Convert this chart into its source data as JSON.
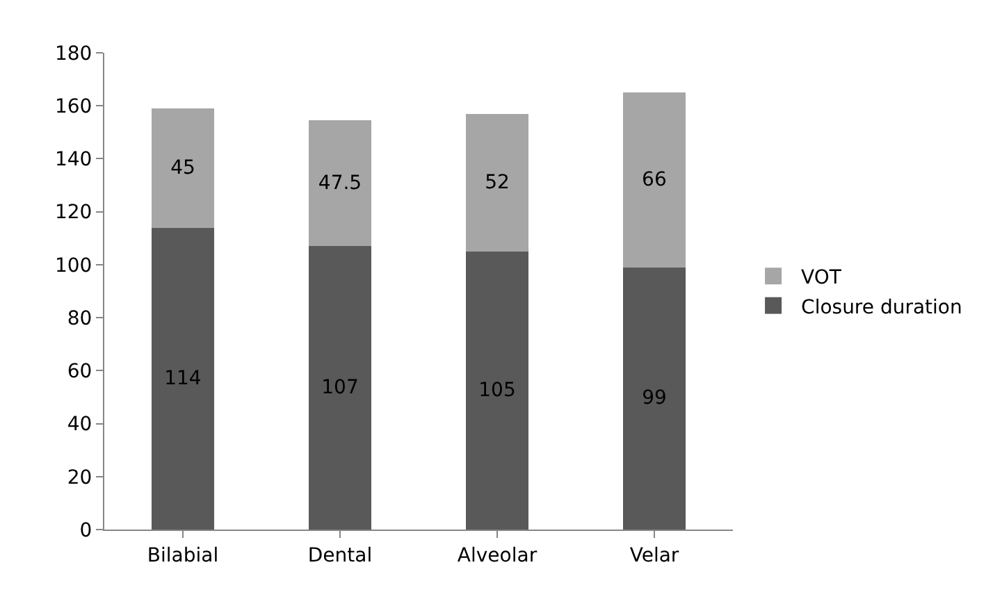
{
  "chart_data": {
    "type": "bar",
    "stacked": true,
    "categories": [
      "Bilabial",
      "Dental",
      "Alveolar",
      "Velar"
    ],
    "series": [
      {
        "name": "Closure duration",
        "color": "#595959",
        "values": [
          114,
          107,
          105,
          99
        ]
      },
      {
        "name": "VOT",
        "color": "#a6a6a6",
        "values": [
          45,
          47.5,
          52,
          66
        ]
      }
    ],
    "ylim": [
      0,
      180
    ],
    "yticks": [
      0,
      20,
      40,
      60,
      80,
      100,
      120,
      140,
      160,
      180
    ],
    "grid": false,
    "legend": "right",
    "data_labels": true
  }
}
